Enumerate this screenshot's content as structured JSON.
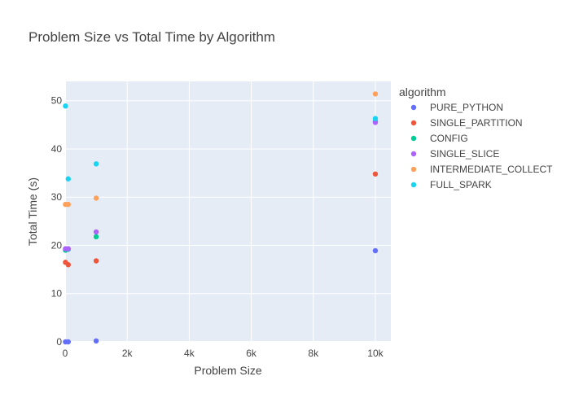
{
  "chart_data": {
    "type": "scatter",
    "title": "Problem Size vs Total Time by Algorithm",
    "xlabel": "Problem Size",
    "ylabel": "Total Time (s)",
    "xlim": [
      0,
      10500
    ],
    "ylim": [
      0,
      54
    ],
    "x_ticks": [
      0,
      2000,
      4000,
      6000,
      8000,
      10000
    ],
    "x_tick_labels": [
      "0",
      "2k",
      "4k",
      "6k",
      "8k",
      "10k"
    ],
    "y_ticks": [
      0,
      10,
      20,
      30,
      40,
      50
    ],
    "y_tick_labels": [
      "0",
      "10",
      "20",
      "30",
      "40",
      "50"
    ],
    "grid": true,
    "legend_title": "algorithm",
    "legend_position": "right",
    "series": [
      {
        "name": "PURE_PYTHON",
        "color": "#636efa",
        "points": [
          [
            10,
            0.0
          ],
          [
            100,
            0.0
          ],
          [
            1000,
            0.2
          ],
          [
            10000,
            18.9
          ]
        ]
      },
      {
        "name": "SINGLE_PARTITION",
        "color": "#EF553B",
        "points": [
          [
            10,
            16.5
          ],
          [
            100,
            16.0
          ],
          [
            1000,
            16.8
          ],
          [
            10000,
            34.8
          ]
        ]
      },
      {
        "name": "CONFIG",
        "color": "#00cc96",
        "points": [
          [
            10,
            19.0
          ],
          [
            100,
            19.2
          ],
          [
            1000,
            21.8
          ],
          [
            10000,
            45.7
          ]
        ]
      },
      {
        "name": "SINGLE_SLICE",
        "color": "#ab63fa",
        "points": [
          [
            10,
            19.3
          ],
          [
            100,
            19.3
          ],
          [
            1000,
            22.8
          ],
          [
            10000,
            45.5
          ]
        ]
      },
      {
        "name": "INTERMEDIATE_COLLECT",
        "color": "#FFA15A",
        "points": [
          [
            10,
            28.5
          ],
          [
            100,
            28.5
          ],
          [
            1000,
            29.8
          ],
          [
            10000,
            51.4
          ]
        ]
      },
      {
        "name": "FULL_SPARK",
        "color": "#19d3f3",
        "points": [
          [
            10,
            48.9
          ],
          [
            100,
            33.8
          ],
          [
            1000,
            36.9
          ],
          [
            10000,
            46.3
          ]
        ]
      }
    ]
  }
}
